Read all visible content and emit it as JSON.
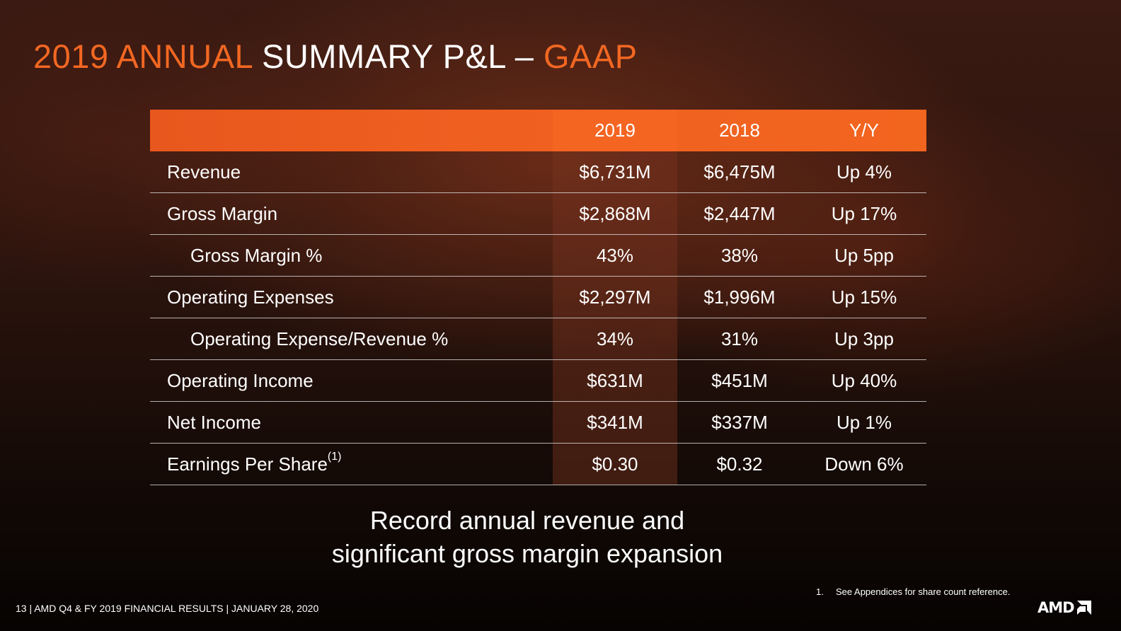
{
  "title": {
    "part1": "2019 ANNUAL",
    "part2": " SUMMARY P&L – ",
    "part3": "GAAP"
  },
  "colors": {
    "accent": "#f26722",
    "header_bg": "#ef6020",
    "text": "#ffffff"
  },
  "table": {
    "headers": [
      "",
      "2019",
      "2018",
      "Y/Y"
    ],
    "rows": [
      {
        "label": "Revenue",
        "indent": false,
        "v2019": "$6,731M",
        "v2018": "$6,475M",
        "yy": "Up 4%"
      },
      {
        "label": "Gross Margin",
        "indent": false,
        "v2019": "$2,868M",
        "v2018": "$2,447M",
        "yy": "Up 17%"
      },
      {
        "label": "Gross Margin %",
        "indent": true,
        "v2019": "43%",
        "v2018": "38%",
        "yy": "Up 5pp"
      },
      {
        "label": "Operating Expenses",
        "indent": false,
        "v2019": "$2,297M",
        "v2018": "$1,996M",
        "yy": "Up 15%"
      },
      {
        "label": "Operating Expense/Revenue %",
        "indent": true,
        "v2019": "34%",
        "v2018": "31%",
        "yy": "Up 3pp"
      },
      {
        "label": "Operating Income",
        "indent": false,
        "v2019": "$631M",
        "v2018": "$451M",
        "yy": "Up 40%"
      },
      {
        "label": "Net Income",
        "indent": false,
        "v2019": "$341M",
        "v2018": "$337M",
        "yy": "Up 1%"
      },
      {
        "label": "Earnings Per Share",
        "sup": "(1)",
        "indent": false,
        "v2019": "$0.30",
        "v2018": "$0.32",
        "yy": "Down 6%"
      }
    ]
  },
  "tagline": {
    "line1": "Record annual revenue and",
    "line2": "significant gross margin expansion"
  },
  "footnote": {
    "number": "1.",
    "text": "See Appendices for share count reference."
  },
  "footer": {
    "text": "13  |  AMD Q4 & FY 2019 FINANCIAL RESULTS  |  JANUARY 28, 2020"
  },
  "logo": {
    "text": "AMD",
    "icon": "amd-arrow-icon"
  }
}
